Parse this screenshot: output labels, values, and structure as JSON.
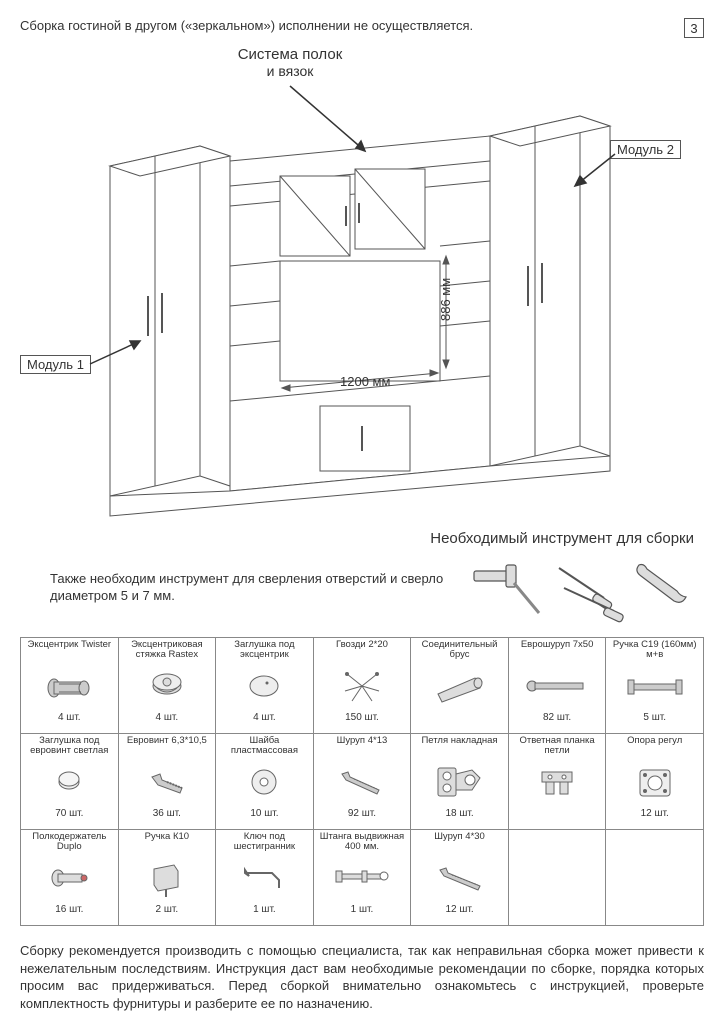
{
  "header_note": "Сборка гостиной в другом («зеркальном») исполнении не осуществляется.",
  "page_number": "3",
  "diagram": {
    "shelf_system_label_l1": "Система полок",
    "shelf_system_label_l2": "и вязок",
    "module1_label": "Модуль 1",
    "module2_label": "Модуль 2",
    "dim_width": "1200 мм",
    "dim_height": "886 мм"
  },
  "tools_title": "Необходимый инструмент для сборки",
  "tools_note": "Также необходим инструмент для сверления отверстий и сверло диаметром 5 и 7 мм.",
  "parts": [
    [
      {
        "name": "Эксцентрик Twister",
        "qty": "4 шт."
      },
      {
        "name": "Эксцентриковая стяжка Rastex",
        "qty": "4 шт."
      },
      {
        "name": "Заглушка под эксцентрик",
        "qty": "4 шт."
      },
      {
        "name": "Гвозди 2*20",
        "qty": "150 шт."
      },
      {
        "name": "Соединительный брус",
        "qty": ""
      },
      {
        "name": "Еврошуруп 7х50",
        "qty": "82 шт."
      },
      {
        "name": "Ручка С19 (160мм) м+в",
        "qty": "5 шт."
      }
    ],
    [
      {
        "name": "Заглушка под евровинт светлая",
        "qty": "70 шт."
      },
      {
        "name": "Евровинт 6,3*10,5",
        "qty": "36 шт."
      },
      {
        "name": "Шайба пластмассовая",
        "qty": "10 шт."
      },
      {
        "name": "Шуруп 4*13",
        "qty": "92 шт."
      },
      {
        "name": "Петля накладная",
        "qty": "18 шт.",
        "span": 1
      },
      {
        "name": "Ответная планка петли",
        "qty": ""
      },
      {
        "name": "Опора регул",
        "qty": "12 шт."
      }
    ],
    [
      {
        "name": "Полкодержатель Duplo",
        "qty": "16 шт."
      },
      {
        "name": "Ручка К10",
        "qty": "2 шт."
      },
      {
        "name": "Ключ под шестигранник",
        "qty": "1 шт."
      },
      {
        "name": "Штанга выдвижная 400 мм.",
        "qty": "1 шт."
      },
      {
        "name": "Шуруп 4*30",
        "qty": "12 шт."
      },
      null,
      null
    ]
  ],
  "footer_text": "Сборку рекомендуется производить с помощью специалиста, так как неправильная сборка может привести к нежелательным последствиям. Инструкция даст вам необходимые рекомендации по сборке, порядка которых просим вас придерживаться. Перед сборкой внимательно ознакомьтесь с инструкцией, проверьте комплектность фурнитуры и разберите ее по назначению.",
  "colors": {
    "line": "#555",
    "text": "#333",
    "border": "#888",
    "bg": "#fff"
  }
}
